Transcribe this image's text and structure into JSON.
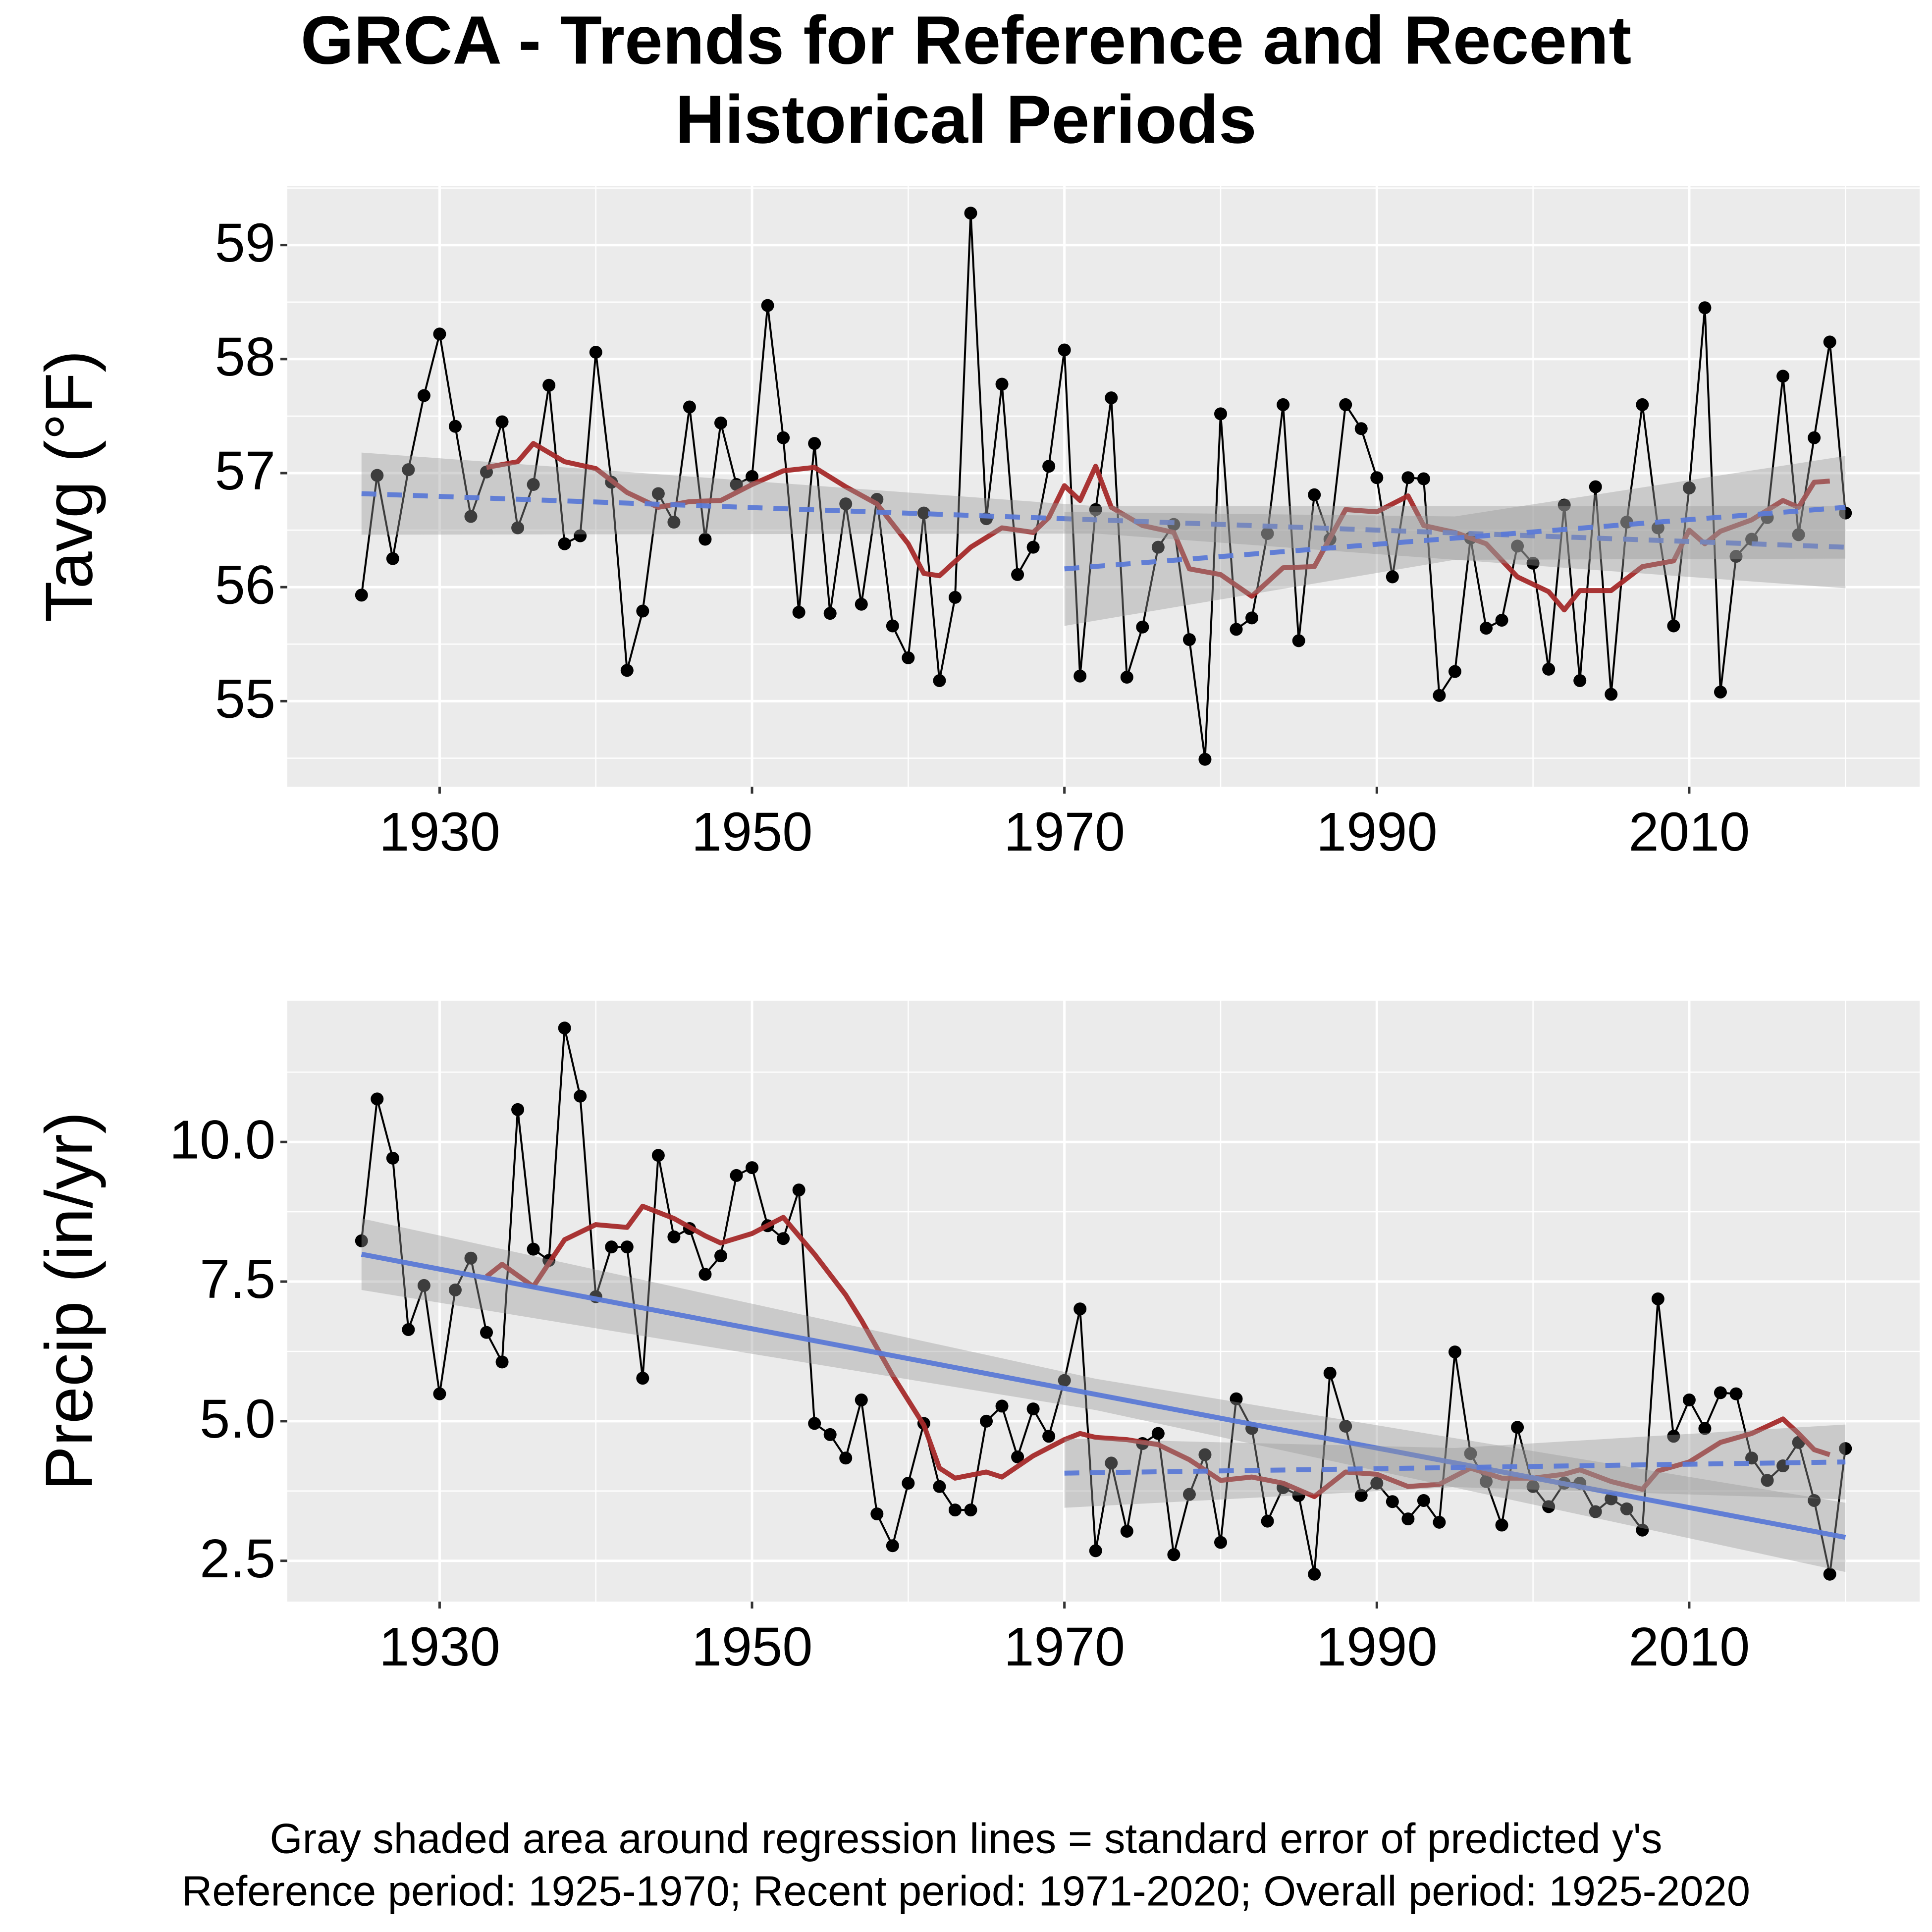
{
  "title": [
    "GRCA - Trends for Reference and Recent",
    "Historical Periods"
  ],
  "caption": [
    "Gray shaded area around regression lines = standard error of predicted y's",
    "Reference period: 1925-1970; Recent period: 1971-2020; Overall period: 1925-2020"
  ],
  "chart_data": [
    {
      "type": "line",
      "ylabel": "Tavg (°F)",
      "x": [
        1925,
        1926,
        1927,
        1928,
        1929,
        1930,
        1931,
        1932,
        1933,
        1934,
        1935,
        1936,
        1937,
        1938,
        1939,
        1940,
        1941,
        1942,
        1943,
        1944,
        1945,
        1946,
        1947,
        1948,
        1949,
        1950,
        1951,
        1952,
        1953,
        1954,
        1955,
        1956,
        1957,
        1958,
        1959,
        1960,
        1961,
        1962,
        1963,
        1964,
        1965,
        1966,
        1967,
        1968,
        1969,
        1970,
        1971,
        1972,
        1973,
        1974,
        1975,
        1976,
        1977,
        1978,
        1979,
        1980,
        1981,
        1982,
        1983,
        1984,
        1985,
        1986,
        1987,
        1988,
        1989,
        1990,
        1991,
        1992,
        1993,
        1994,
        1995,
        1996,
        1997,
        1998,
        1999,
        2000,
        2001,
        2002,
        2003,
        2004,
        2005,
        2006,
        2007,
        2008,
        2009,
        2010,
        2011,
        2012,
        2013,
        2014,
        2015,
        2016,
        2017,
        2018,
        2019,
        2020
      ],
      "xlim": [
        1920.25,
        2024.75
      ],
      "xticks": [
        1930,
        1950,
        1970,
        1990,
        2010
      ],
      "minor_xticks": [
        1920,
        1940,
        1960,
        1980,
        2000,
        2020
      ],
      "ylim": [
        54.25,
        59.52
      ],
      "yticks": [
        55,
        56,
        57,
        58,
        59
      ],
      "minor_yticks": [
        54.5,
        55.5,
        56.5,
        57.5,
        58.5,
        59.5
      ],
      "grid": true,
      "series": [
        {
          "color": "#000000",
          "markers": true,
          "values": [
            55.93,
            56.98,
            56.25,
            57.03,
            57.68,
            58.22,
            57.41,
            56.62,
            57.01,
            57.45,
            56.52,
            56.9,
            57.77,
            56.38,
            56.45,
            58.06,
            56.92,
            55.27,
            55.79,
            56.82,
            56.57,
            57.58,
            56.42,
            57.44,
            56.9,
            56.97,
            58.47,
            57.31,
            55.78,
            57.26,
            55.77,
            56.73,
            55.85,
            56.77,
            55.66,
            55.38,
            56.65,
            55.18,
            55.91,
            59.28,
            56.6,
            57.78,
            56.11,
            56.35,
            57.06,
            58.08,
            55.22,
            56.68,
            57.66,
            55.21,
            55.65,
            56.35,
            56.55,
            55.54,
            54.49,
            57.52,
            55.63,
            55.73,
            56.47,
            57.6,
            55.53,
            56.81,
            56.42,
            57.6,
            57.39,
            56.96,
            56.09,
            56.96,
            56.95,
            55.05,
            55.26,
            56.43,
            55.64,
            55.71,
            56.36,
            56.21,
            55.28,
            56.72,
            55.18,
            56.88,
            55.06,
            56.57,
            57.6,
            56.52,
            55.66,
            56.87,
            58.45,
            55.08,
            56.27,
            56.42,
            56.61,
            57.85,
            56.46,
            57.31,
            58.15,
            56.65
          ]
        },
        {
          "color": "#a52a2a",
          "x": [
            1933,
            1935,
            1936,
            1938,
            1940,
            1942,
            1944,
            1946,
            1948,
            1950,
            1952,
            1954,
            1956,
            1958,
            1960,
            1961,
            1962,
            1964,
            1966,
            1968,
            1969,
            1970,
            1971,
            1972,
            1973,
            1975,
            1977,
            1978,
            1980,
            1982,
            1984,
            1986,
            1988,
            1990,
            1992,
            1993,
            1995,
            1997,
            1999,
            2001,
            2002,
            2003,
            2005,
            2007,
            2009,
            2010,
            2011,
            2012,
            2014,
            2016,
            2017,
            2018,
            2019
          ],
          "values": [
            57.05,
            57.1,
            57.26,
            57.1,
            57.04,
            56.83,
            56.7,
            56.75,
            56.76,
            56.9,
            57.02,
            57.05,
            56.88,
            56.73,
            56.38,
            56.12,
            56.1,
            56.35,
            56.52,
            56.48,
            56.61,
            56.89,
            56.76,
            57.06,
            56.7,
            56.54,
            56.48,
            56.16,
            56.11,
            55.92,
            56.17,
            56.18,
            56.68,
            56.66,
            56.8,
            56.54,
            56.48,
            56.38,
            56.09,
            55.96,
            55.8,
            55.97,
            55.97,
            56.18,
            56.23,
            56.5,
            56.38,
            56.49,
            56.59,
            56.76,
            56.7,
            56.92,
            56.93
          ]
        },
        {
          "color": "#3366ff",
          "dash": true,
          "band_color": "#999999",
          "x": [
            1925,
            1972,
            2020
          ],
          "values": [
            56.82,
            56.59,
            56.35
          ],
          "lower": [
            56.46,
            56.47,
            55.99
          ],
          "upper": [
            57.18,
            56.71,
            56.71
          ]
        },
        {
          "color": "#3366ff",
          "dash": true,
          "band_color": "#999999",
          "x": [
            1970,
            1995,
            2020
          ],
          "values": [
            56.16,
            56.43,
            56.7
          ],
          "lower": [
            55.66,
            56.24,
            56.25
          ],
          "upper": [
            56.66,
            56.62,
            57.15
          ]
        }
      ]
    },
    {
      "type": "line",
      "ylabel": "Precip (in/yr)",
      "x": [
        1925,
        1926,
        1927,
        1928,
        1929,
        1930,
        1931,
        1932,
        1933,
        1934,
        1935,
        1936,
        1937,
        1938,
        1939,
        1940,
        1941,
        1942,
        1943,
        1944,
        1945,
        1946,
        1947,
        1948,
        1949,
        1950,
        1951,
        1952,
        1953,
        1954,
        1955,
        1956,
        1957,
        1958,
        1959,
        1960,
        1961,
        1962,
        1963,
        1964,
        1965,
        1966,
        1967,
        1968,
        1969,
        1970,
        1971,
        1972,
        1973,
        1974,
        1975,
        1976,
        1977,
        1978,
        1979,
        1980,
        1981,
        1982,
        1983,
        1984,
        1985,
        1986,
        1987,
        1988,
        1989,
        1990,
        1991,
        1992,
        1993,
        1994,
        1995,
        1996,
        1997,
        1998,
        1999,
        2000,
        2001,
        2002,
        2003,
        2004,
        2005,
        2006,
        2007,
        2008,
        2009,
        2010,
        2011,
        2012,
        2013,
        2014,
        2015,
        2016,
        2017,
        2018,
        2019,
        2020
      ],
      "xlim": [
        1920.25,
        2024.75
      ],
      "xticks": [
        1930,
        1950,
        1970,
        1990,
        2010
      ],
      "minor_xticks": [
        1920,
        1940,
        1960,
        1980,
        2000,
        2020
      ],
      "ylim": [
        1.77,
        12.53
      ],
      "yticks": [
        2.5,
        {
          "value": 5,
          "label": "5.0"
        },
        7.5,
        {
          "value": 10,
          "label": "10.0"
        }
      ],
      "minor_yticks": [
        3.75,
        6.25,
        8.75,
        11.25
      ],
      "grid": true,
      "series": [
        {
          "color": "#000000",
          "markers": true,
          "values": [
            8.23,
            10.77,
            9.71,
            6.64,
            7.43,
            5.49,
            7.35,
            7.92,
            6.59,
            6.06,
            10.58,
            8.08,
            7.88,
            12.04,
            10.82,
            7.23,
            8.12,
            8.12,
            5.77,
            9.76,
            8.3,
            8.45,
            7.63,
            7.96,
            9.4,
            9.54,
            8.5,
            8.27,
            9.14,
            4.96,
            4.76,
            4.34,
            5.38,
            3.34,
            2.77,
            3.89,
            4.96,
            3.83,
            3.41,
            3.41,
            5.0,
            5.27,
            4.36,
            5.22,
            4.73,
            5.73,
            7.01,
            2.68,
            4.25,
            3.03,
            4.6,
            4.78,
            2.61,
            3.69,
            4.4,
            2.83,
            5.4,
            4.87,
            3.21,
            3.81,
            3.67,
            2.26,
            5.86,
            4.91,
            3.67,
            3.89,
            3.56,
            3.25,
            3.58,
            3.19,
            6.24,
            4.42,
            3.92,
            3.14,
            4.89,
            3.83,
            3.47,
            3.89,
            3.89,
            3.38,
            3.61,
            3.43,
            3.05,
            7.19,
            4.73,
            5.38,
            4.87,
            5.51,
            5.49,
            4.34,
            3.94,
            4.2,
            4.62,
            3.58,
            2.26,
            4.51
          ]
        },
        {
          "color": "#a52a2a",
          "x": [
            1933,
            1934,
            1936,
            1938,
            1940,
            1942,
            1943,
            1945,
            1947,
            1948,
            1950,
            1952,
            1954,
            1956,
            1957,
            1959,
            1961,
            1962,
            1963,
            1965,
            1966,
            1968,
            1970,
            1971,
            1972,
            1974,
            1976,
            1978,
            1980,
            1982,
            1984,
            1986,
            1988,
            1990,
            1992,
            1994,
            1996,
            1998,
            2000,
            2002,
            2003,
            2005,
            2007,
            2008,
            2010,
            2012,
            2014,
            2016,
            2017,
            2018,
            2019
          ],
          "values": [
            7.59,
            7.81,
            7.41,
            8.25,
            8.52,
            8.47,
            8.85,
            8.63,
            8.32,
            8.19,
            8.36,
            8.65,
            7.99,
            7.26,
            6.81,
            5.82,
            4.93,
            4.16,
            3.98,
            4.09,
            4.0,
            4.38,
            4.67,
            4.78,
            4.71,
            4.67,
            4.58,
            4.31,
            3.94,
            4.0,
            3.89,
            3.65,
            4.09,
            4.05,
            3.83,
            3.87,
            4.16,
            3.98,
            3.98,
            4.05,
            4.13,
            3.92,
            3.78,
            4.11,
            4.27,
            4.62,
            4.78,
            5.04,
            4.78,
            4.49,
            4.4
          ]
        },
        {
          "color": "#3366ff",
          "band_color": "#999999",
          "x": [
            1925,
            1972,
            2020
          ],
          "values": [
            7.99,
            5.48,
            2.92
          ],
          "lower": [
            7.35,
            5.2,
            2.3
          ],
          "upper": [
            8.63,
            5.76,
            3.54
          ]
        },
        {
          "color": "#3366ff",
          "dash": true,
          "band_color": "#999999",
          "x": [
            1970,
            1995,
            2020
          ],
          "values": [
            4.07,
            4.17,
            4.27
          ],
          "lower": [
            3.45,
            3.82,
            3.6
          ],
          "upper": [
            4.69,
            4.52,
            4.94
          ]
        }
      ]
    }
  ]
}
